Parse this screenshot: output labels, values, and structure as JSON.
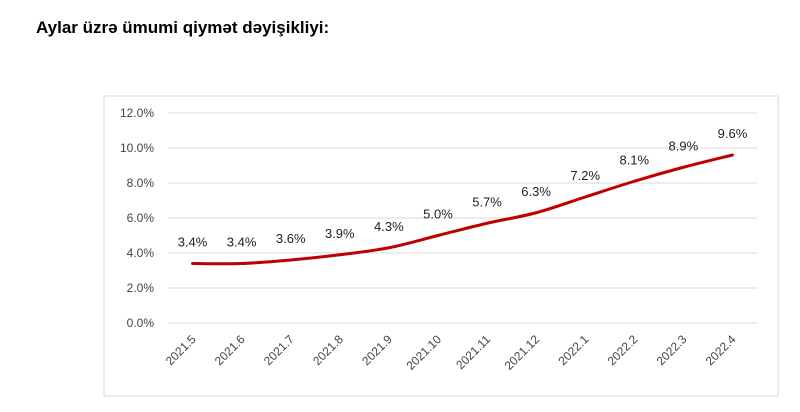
{
  "title": "Aylar üzrə ümumi qiymət dəyişikliyi:",
  "chart_data": {
    "type": "line",
    "title": "",
    "xlabel": "",
    "ylabel": "",
    "categories": [
      "2021.5",
      "2021.6",
      "2021.7",
      "2021.8",
      "2021.9",
      "2021.10",
      "2021.11",
      "2021.12",
      "2022.1",
      "2022.2",
      "2022.3",
      "2022.4"
    ],
    "values": [
      3.4,
      3.4,
      3.6,
      3.9,
      4.3,
      5.0,
      5.7,
      6.3,
      7.2,
      8.1,
      8.9,
      9.6
    ],
    "data_labels": [
      "3.4%",
      "3.4%",
      "3.6%",
      "3.9%",
      "4.3%",
      "5.0%",
      "5.7%",
      "6.3%",
      "7.2%",
      "8.1%",
      "8.9%",
      "9.6%"
    ],
    "yticks": [
      "0.0%",
      "2.0%",
      "4.0%",
      "6.0%",
      "8.0%",
      "10.0%",
      "12.0%"
    ],
    "ylim": [
      0,
      12
    ],
    "grid": true,
    "line_color": "#C00000"
  }
}
